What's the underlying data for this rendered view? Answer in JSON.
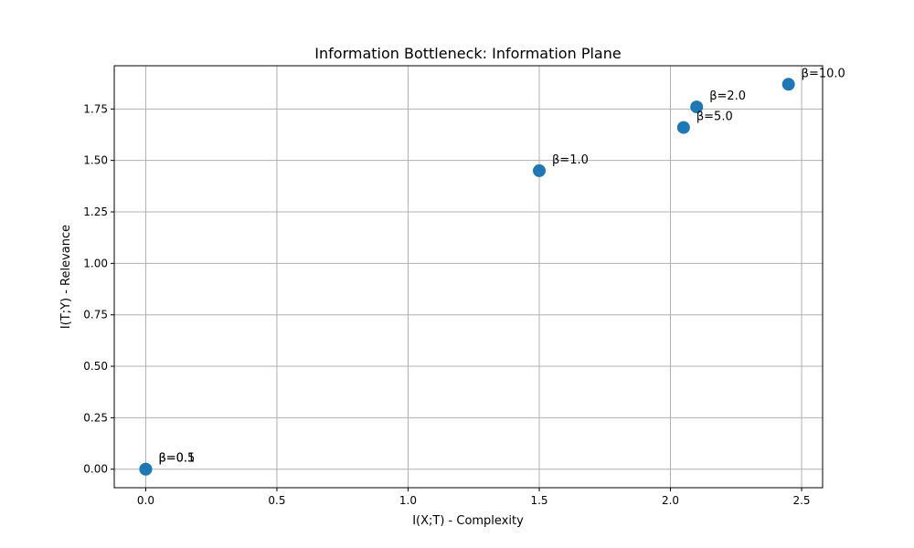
{
  "chart_data": {
    "type": "scatter",
    "title": "Information Bottleneck: Information Plane",
    "xlabel": "I(X;T) - Complexity",
    "ylabel": "I(T;Y) - Relevance",
    "xlim": [
      -0.12,
      2.58
    ],
    "ylim": [
      -0.09,
      1.96
    ],
    "xticks": [
      0.0,
      0.5,
      1.0,
      1.5,
      2.0,
      2.5
    ],
    "xtick_labels": [
      "0.0",
      "0.5",
      "1.0",
      "1.5",
      "2.0",
      "2.5"
    ],
    "yticks": [
      0.0,
      0.25,
      0.5,
      0.75,
      1.0,
      1.25,
      1.5,
      1.75
    ],
    "ytick_labels": [
      "0.00",
      "0.25",
      "0.50",
      "0.75",
      "1.00",
      "1.25",
      "1.50",
      "1.75"
    ],
    "grid": true,
    "point_color": "#1f77b4",
    "points": [
      {
        "label": "β=0.1",
        "x": 0.0,
        "y": 0.0
      },
      {
        "label": "β=0.5",
        "x": 0.0,
        "y": 0.0
      },
      {
        "label": "β=1.0",
        "x": 1.5,
        "y": 1.45
      },
      {
        "label": "β=2.0",
        "x": 2.1,
        "y": 1.76
      },
      {
        "label": "β=5.0",
        "x": 2.05,
        "y": 1.66
      },
      {
        "label": "β=10.0",
        "x": 2.45,
        "y": 1.87
      }
    ]
  }
}
